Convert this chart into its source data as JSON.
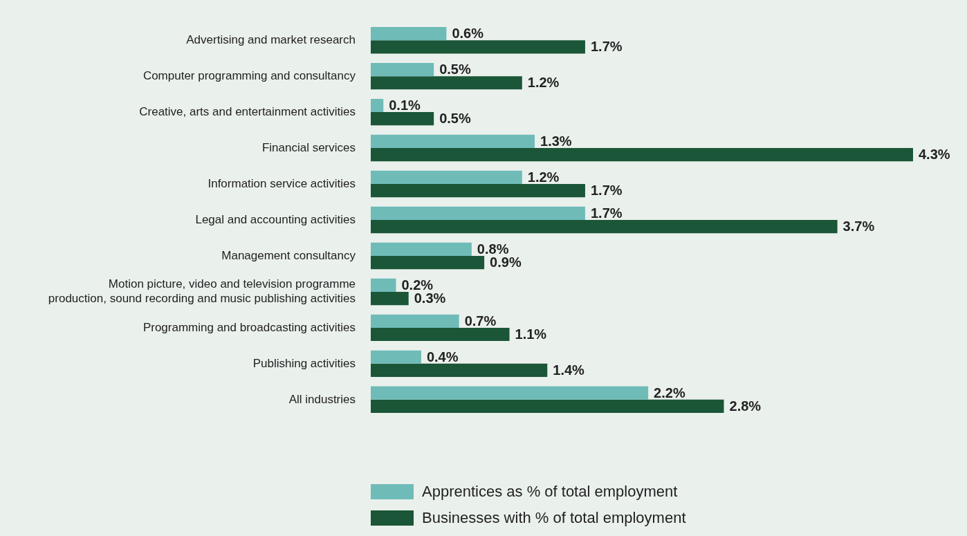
{
  "chart_data": {
    "type": "bar",
    "orientation": "horizontal",
    "legend": "bottom",
    "categories": [
      "Advertising and market research",
      "Computer programming and consultancy",
      "Creative, arts and entertainment activities",
      "Financial services",
      "Information service activities",
      "Legal and accounting activities",
      "Management consultancy",
      "Motion picture, video and television programme production, sound recording and music publishing activities",
      "Programming and broadcasting activities",
      "Publishing activities",
      "All industries"
    ],
    "series": [
      {
        "name": "Apprentices as % of total employment",
        "color": "#6fbbb8",
        "values": [
          0.6,
          0.5,
          0.1,
          1.3,
          1.2,
          1.7,
          0.8,
          0.2,
          0.7,
          0.4,
          2.2
        ],
        "value_labels": [
          "0.6%",
          "0.5%",
          "0.1%",
          "1.3%",
          "1.2%",
          "1.7%",
          "0.8%",
          "0.2%",
          "0.7%",
          "0.4%",
          "2.2%"
        ]
      },
      {
        "name": "Businesses with % of total employment",
        "color": "#1a5637",
        "values": [
          1.7,
          1.2,
          0.5,
          4.3,
          1.7,
          3.7,
          0.9,
          0.3,
          1.1,
          1.4,
          2.8
        ],
        "value_labels": [
          "1.7%",
          "1.2%",
          "0.5%",
          "4.3%",
          "1.7%",
          "3.7%",
          "0.9%",
          "0.3%",
          "1.1%",
          "1.4%",
          "2.8%"
        ]
      }
    ]
  }
}
